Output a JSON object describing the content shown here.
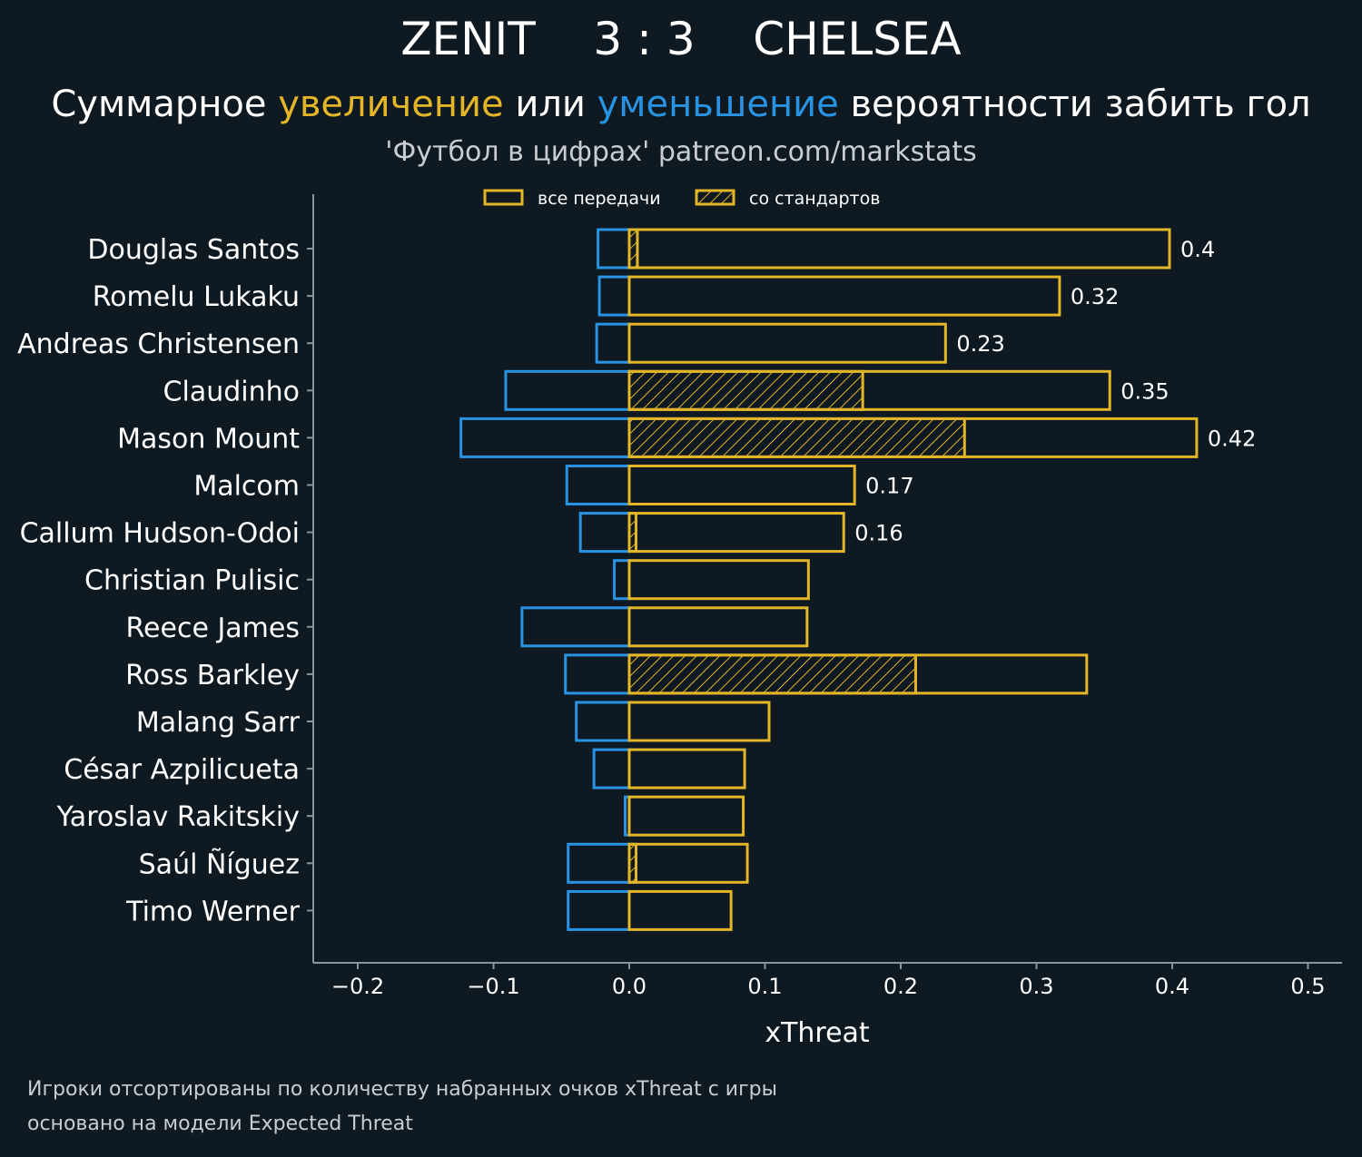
{
  "header": {
    "team_home": "ZENIT",
    "score": "3 : 3",
    "team_away": "CHELSEA",
    "subtitle_part1": "Суммарное ",
    "subtitle_up": "увеличение",
    "subtitle_part2": " или ",
    "subtitle_down": "уменьшение",
    "subtitle_part3": " вероятности забить гол",
    "credit": "'Футбол в цифрах' patreon.com/markstats"
  },
  "footnotes": {
    "line1": "Игроки отсортированы по количеству набранных очков xThreat с игры",
    "line2": "основано на модели Expected Threat"
  },
  "colors": {
    "background": "#0f1921",
    "increase": "#e3b528",
    "decrease": "#2893e3",
    "axis": "#8a949c",
    "text": "#ffffff"
  },
  "chart_data": {
    "type": "bar",
    "orientation": "horizontal",
    "xlabel": "xThreat",
    "xlim": [
      -0.235,
      0.525
    ],
    "xticks": [
      -0.2,
      -0.1,
      0.0,
      0.1,
      0.2,
      0.3,
      0.4,
      0.5
    ],
    "xtick_labels": [
      "−0.2",
      "−0.1",
      "0.0",
      "0.1",
      "0.2",
      "0.3",
      "0.4",
      "0.5"
    ],
    "grid": false,
    "legend_position": "top",
    "legend": [
      {
        "label": "все передачи",
        "style": "outline"
      },
      {
        "label": "со стандартов",
        "style": "hatched"
      }
    ],
    "categories": [
      "Douglas Santos",
      "Romelu Lukaku",
      "Andreas Christensen",
      "Claudinho",
      "Mason Mount",
      "Malcom",
      "Callum Hudson-Odoi",
      "Christian Pulisic",
      "Reece James",
      "Ross Barkley",
      "Malang Sarr",
      "César Azpilicueta",
      "Yaroslav Rakitskiy",
      "Saúl Ñíguez",
      "Timo Werner"
    ],
    "series": [
      {
        "name": "все передачи",
        "values": [
          0.398,
          0.317,
          0.233,
          0.354,
          0.418,
          0.166,
          0.158,
          0.132,
          0.131,
          0.337,
          0.103,
          0.085,
          0.084,
          0.087,
          0.075
        ]
      },
      {
        "name": "со стандартов",
        "values": [
          0.006,
          0.0,
          0.0,
          0.172,
          0.247,
          0.0,
          0.005,
          0.0,
          0.0,
          0.211,
          0.0,
          0.0,
          0.0,
          0.005,
          0.0
        ]
      },
      {
        "values": [
          -0.023,
          -0.022,
          -0.024,
          -0.091,
          -0.124,
          -0.046,
          -0.036,
          -0.011,
          -0.079,
          -0.047,
          -0.039,
          -0.026,
          -0.003,
          -0.045,
          -0.045
        ]
      }
    ],
    "data_labels": [
      "0.4",
      "0.32",
      "0.23",
      "0.35",
      "0.42",
      "0.17",
      "0.16",
      "",
      "",
      "",
      "",
      "",
      "",
      "",
      ""
    ]
  }
}
